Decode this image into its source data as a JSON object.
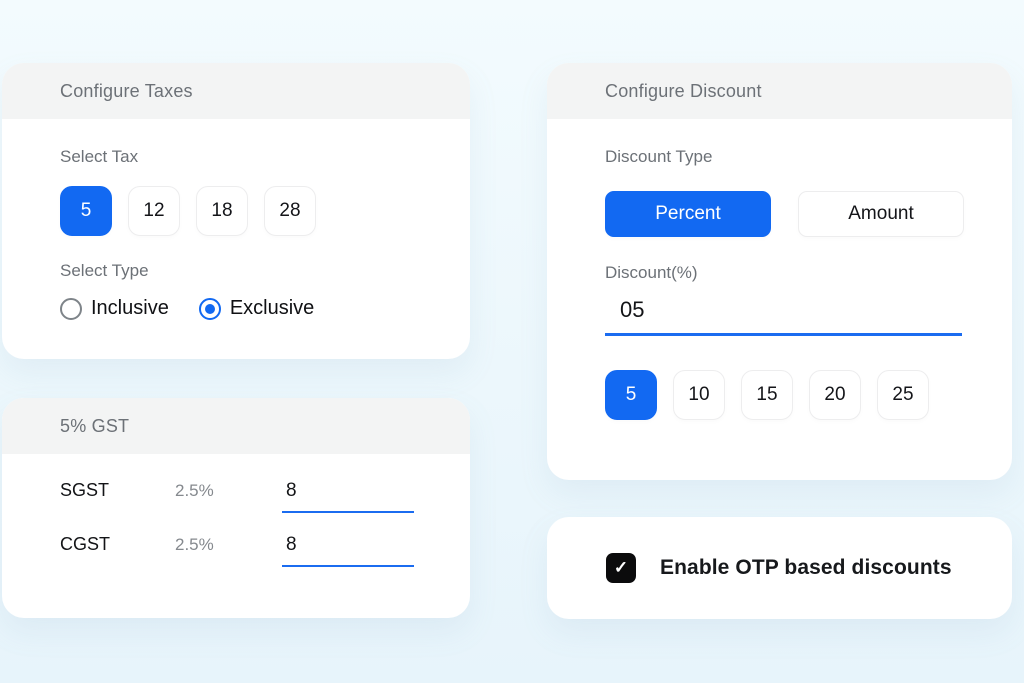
{
  "theme": {
    "accent_blue": "#1269f2",
    "page_background": "#ecf7fc",
    "card_header_bg": "#f3f4f4",
    "checkbox_black": "#0b0b0c"
  },
  "taxes_card": {
    "title": "Configure Taxes",
    "select_tax_label": "Select Tax",
    "tax_options": [
      "5",
      "12",
      "18",
      "28"
    ],
    "selected_tax": "5",
    "select_type_label": "Select Type",
    "type_options": [
      {
        "label": "Inclusive",
        "selected": false
      },
      {
        "label": "Exclusive",
        "selected": true
      }
    ]
  },
  "gst_card": {
    "title": "5% GST",
    "rows": [
      {
        "name": "SGST",
        "rate": "2.5%",
        "value": "8"
      },
      {
        "name": "CGST",
        "rate": "2.5%",
        "value": "8"
      }
    ]
  },
  "discount_card": {
    "title": "Configure Discount",
    "discount_type_label": "Discount Type",
    "type_options": [
      {
        "label": "Percent",
        "selected": true
      },
      {
        "label": "Amount",
        "selected": false
      }
    ],
    "discount_input_label": "Discount(%)",
    "discount_value": "05",
    "quick_options": [
      "5",
      "10",
      "15",
      "20",
      "25"
    ],
    "selected_quick": "5"
  },
  "otp_card": {
    "label": "Enable OTP based discounts",
    "checked": true,
    "check_glyph": "✓"
  }
}
